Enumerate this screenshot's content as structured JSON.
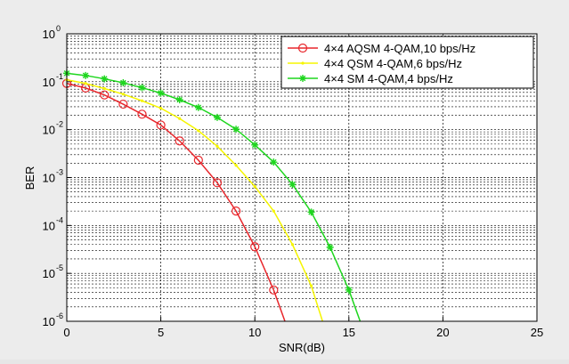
{
  "chart_data": {
    "type": "line",
    "title": "",
    "xlabel": "SNR(dB)",
    "ylabel": "BER",
    "xlim": [
      0,
      25
    ],
    "ylim": [
      1e-06,
      1
    ],
    "yscale": "log",
    "grid": true,
    "minor_grid": true,
    "legend_position": "top-right",
    "x_ticks": [
      "0",
      "5",
      "10",
      "15",
      "20",
      "25"
    ],
    "y_ticks": [
      {
        "base": "10",
        "exp": "0",
        "value": 1
      },
      {
        "base": "10",
        "exp": "-1",
        "value": 0.1
      },
      {
        "base": "10",
        "exp": "-2",
        "value": 0.01
      },
      {
        "base": "10",
        "exp": "-3",
        "value": 0.001
      },
      {
        "base": "10",
        "exp": "-4",
        "value": 0.0001
      },
      {
        "base": "10",
        "exp": "-5",
        "value": 1e-05
      },
      {
        "base": "10",
        "exp": "-6",
        "value": 1e-06
      }
    ],
    "series": [
      {
        "name": "4×4 AQSM 4-QAM,10 bps/Hz",
        "color": "#e8262b",
        "marker": "circle",
        "x": [
          0,
          1,
          2,
          3,
          4,
          5,
          6,
          7,
          8,
          9,
          10,
          11,
          11.6
        ],
        "y": [
          0.092,
          0.074,
          0.053,
          0.034,
          0.021,
          0.0125,
          0.0058,
          0.0023,
          0.00078,
          0.0002,
          3.6e-05,
          4.5e-06,
          1e-06
        ]
      },
      {
        "name": "4×4 QSM 4-QAM,6 bps/Hz",
        "color": "#f5f500",
        "marker": "point",
        "x": [
          0,
          1,
          2,
          3,
          4,
          5,
          6,
          7,
          8,
          9,
          10,
          11,
          12,
          13,
          13.6
        ],
        "y": [
          0.11,
          0.092,
          0.072,
          0.055,
          0.04,
          0.028,
          0.017,
          0.0095,
          0.0045,
          0.0018,
          0.00065,
          0.0002,
          4e-05,
          5.5e-06,
          1e-06
        ]
      },
      {
        "name": "4×4 SM 4-QAM,4 bps/Hz",
        "color": "#1ed61e",
        "marker": "star",
        "x": [
          0,
          1,
          2,
          3,
          4,
          5,
          6,
          7,
          8,
          9,
          10,
          11,
          12,
          13,
          14,
          15,
          15.6
        ],
        "y": [
          0.15,
          0.135,
          0.115,
          0.095,
          0.075,
          0.058,
          0.042,
          0.029,
          0.018,
          0.0102,
          0.0048,
          0.0021,
          0.00072,
          0.00019,
          3.5e-05,
          4.5e-06,
          1e-06
        ]
      }
    ]
  }
}
